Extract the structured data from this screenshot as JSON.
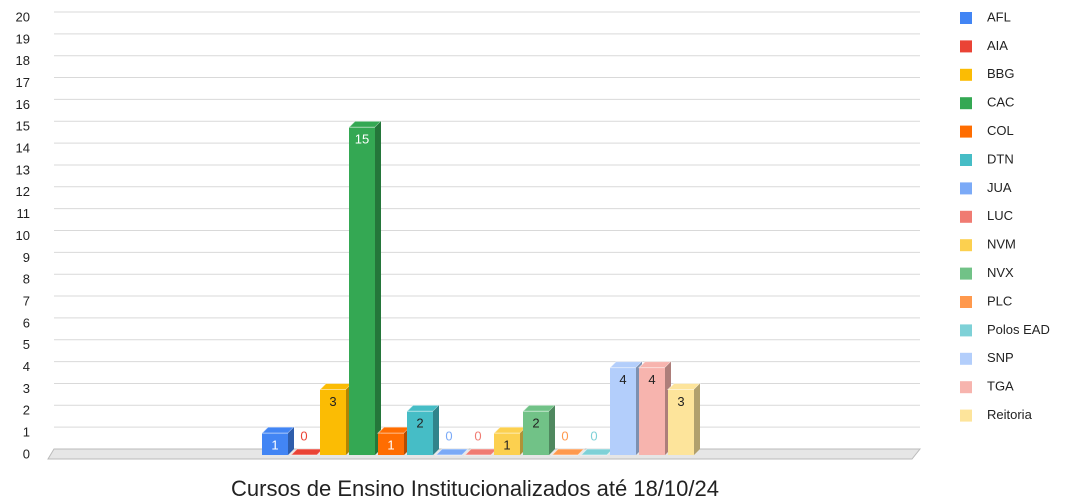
{
  "chart_data": {
    "type": "bar",
    "title": "Cursos de Ensino Institucionalizados até 18/10/24",
    "ylim": [
      0,
      20
    ],
    "yticks": [
      0,
      1,
      2,
      3,
      4,
      5,
      6,
      7,
      8,
      9,
      10,
      11,
      12,
      13,
      14,
      15,
      16,
      17,
      18,
      19,
      20
    ],
    "grid": true,
    "legend": "right",
    "series": [
      {
        "name": "AFL",
        "color": "#4285f4",
        "values": [
          1
        ]
      },
      {
        "name": "AIA",
        "color": "#ea4335",
        "values": [
          0
        ]
      },
      {
        "name": "BBG",
        "color": "#fbbc04",
        "values": [
          3
        ]
      },
      {
        "name": "CAC",
        "color": "#34a853",
        "values": [
          15
        ]
      },
      {
        "name": "COL",
        "color": "#ff6d01",
        "values": [
          1
        ]
      },
      {
        "name": "DTN",
        "color": "#46bdc6",
        "values": [
          2
        ]
      },
      {
        "name": "JUA",
        "color": "#7baaf7",
        "values": [
          0
        ]
      },
      {
        "name": "LUC",
        "color": "#f07b72",
        "values": [
          0
        ]
      },
      {
        "name": "NVM",
        "color": "#fcd04f",
        "values": [
          1
        ]
      },
      {
        "name": "NVX",
        "color": "#71c287",
        "values": [
          2
        ]
      },
      {
        "name": "PLC",
        "color": "#ff994d",
        "values": [
          0
        ]
      },
      {
        "name": "Polos EAD",
        "color": "#7ed1d7",
        "values": [
          0
        ]
      },
      {
        "name": "SNP",
        "color": "#b3cefb",
        "values": [
          4
        ]
      },
      {
        "name": "TGA",
        "color": "#f7b4ae",
        "values": [
          4
        ]
      },
      {
        "name": "Reitoria",
        "color": "#fde49b",
        "values": [
          3
        ]
      }
    ]
  }
}
